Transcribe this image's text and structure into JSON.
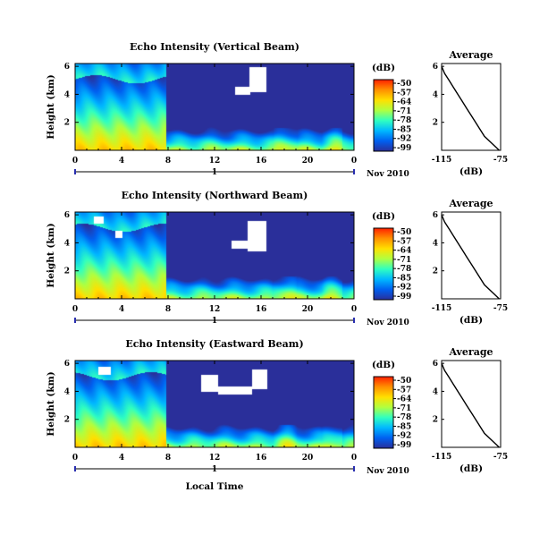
{
  "chart_data": {
    "type": "heatmap",
    "panels": [
      {
        "title": "Echo Intensity (Vertical Beam)",
        "ylabel": "Height (km)",
        "yticks": [
          "2",
          "4",
          "6"
        ],
        "ylim": [
          0,
          6.2
        ],
        "xticks": [
          "0",
          "4",
          "8",
          "12",
          "16",
          "20",
          "0"
        ],
        "xlim": [
          0,
          24
        ],
        "day_marker": "1",
        "date_label": "Nov 2010",
        "colorbar_unit": "(dB)",
        "colorbar_ticks": [
          "-50",
          "-57",
          "-64",
          "-71",
          "-78",
          "-85",
          "-92",
          "-99"
        ],
        "avg_title": "Average",
        "avg_xlabel": "(dB)",
        "avg_xticks": [
          "-115",
          "-75"
        ],
        "avg_yticks": [
          "2",
          "4",
          "6"
        ],
        "avg_profile": [
          [
            0,
            -76
          ],
          [
            0.3,
            -79
          ],
          [
            0.6,
            -82
          ],
          [
            1,
            -86
          ],
          [
            1.5,
            -89
          ],
          [
            2,
            -92
          ],
          [
            2.5,
            -95
          ],
          [
            3,
            -98
          ],
          [
            3.5,
            -101
          ],
          [
            4,
            -104
          ],
          [
            4.5,
            -107
          ],
          [
            5,
            -110
          ],
          [
            5.5,
            -113
          ],
          [
            6,
            -115
          ]
        ],
        "clear_regions": [
          [
            15.0,
            16.4,
            4.2,
            6.0
          ],
          [
            13.7,
            15.0,
            4.0,
            4.6
          ]
        ]
      },
      {
        "title": "Echo Intensity (Northward Beam)",
        "ylabel": "Height (km)",
        "yticks": [
          "2",
          "4",
          "6"
        ],
        "ylim": [
          0,
          6.2
        ],
        "xticks": [
          "0",
          "4",
          "8",
          "12",
          "16",
          "20",
          "0"
        ],
        "xlim": [
          0,
          24
        ],
        "day_marker": "1",
        "date_label": "Nov 2010",
        "colorbar_unit": "(dB)",
        "colorbar_ticks": [
          "-50",
          "-57",
          "-64",
          "-71",
          "-78",
          "-85",
          "-92",
          "-99"
        ],
        "avg_title": "Average",
        "avg_xlabel": "(dB)",
        "avg_xticks": [
          "-115",
          "-75"
        ],
        "avg_yticks": [
          "2",
          "4",
          "6"
        ],
        "avg_profile": [
          [
            0,
            -76
          ],
          [
            0.3,
            -79
          ],
          [
            0.6,
            -82
          ],
          [
            1,
            -86
          ],
          [
            1.5,
            -89
          ],
          [
            2,
            -92
          ],
          [
            2.5,
            -95
          ],
          [
            3,
            -98
          ],
          [
            3.5,
            -101
          ],
          [
            4,
            -104
          ],
          [
            4.5,
            -107
          ],
          [
            5,
            -110
          ],
          [
            5.5,
            -113
          ],
          [
            6,
            -115
          ]
        ],
        "clear_regions": [
          [
            14.8,
            16.4,
            3.4,
            5.6
          ],
          [
            13.4,
            14.8,
            3.6,
            4.2
          ],
          [
            1.6,
            2.4,
            5.4,
            5.9
          ],
          [
            3.4,
            4.0,
            4.4,
            4.9
          ]
        ]
      },
      {
        "title": "Echo Intensity (Eastward Beam)",
        "ylabel": "Height (km)",
        "yticks": [
          "2",
          "4",
          "6"
        ],
        "ylim": [
          0,
          6.2
        ],
        "xticks": [
          "0",
          "4",
          "8",
          "12",
          "16",
          "20",
          "0"
        ],
        "xlim": [
          0,
          24
        ],
        "day_marker": "1",
        "date_label": "Nov 2010",
        "colorbar_unit": "(dB)",
        "colorbar_ticks": [
          "-50",
          "-57",
          "-64",
          "-71",
          "-78",
          "-85",
          "-92",
          "-99"
        ],
        "avg_title": "Average",
        "avg_xlabel": "(dB)",
        "avg_xticks": [
          "-115",
          "-75"
        ],
        "avg_yticks": [
          "2",
          "4",
          "6"
        ],
        "avg_profile": [
          [
            0,
            -76
          ],
          [
            0.3,
            -79
          ],
          [
            0.6,
            -82
          ],
          [
            1,
            -86
          ],
          [
            1.5,
            -89
          ],
          [
            2,
            -92
          ],
          [
            2.5,
            -95
          ],
          [
            3,
            -98
          ],
          [
            3.5,
            -101
          ],
          [
            4,
            -104
          ],
          [
            4.5,
            -107
          ],
          [
            5,
            -110
          ],
          [
            5.5,
            -113
          ],
          [
            6,
            -115
          ]
        ],
        "clear_regions": [
          [
            10.8,
            12.3,
            4.0,
            5.2
          ],
          [
            12.3,
            15.2,
            3.8,
            4.4
          ],
          [
            15.2,
            16.5,
            4.2,
            5.6
          ],
          [
            2.0,
            3.0,
            5.2,
            5.8
          ]
        ]
      }
    ],
    "xlabel": "Local Time",
    "colorbar_colors": [
      "#ff2000",
      "#ff9000",
      "#ffe000",
      "#b0ff40",
      "#30ffc0",
      "#00b8ff",
      "#0060f0",
      "#2a2f9a"
    ]
  }
}
